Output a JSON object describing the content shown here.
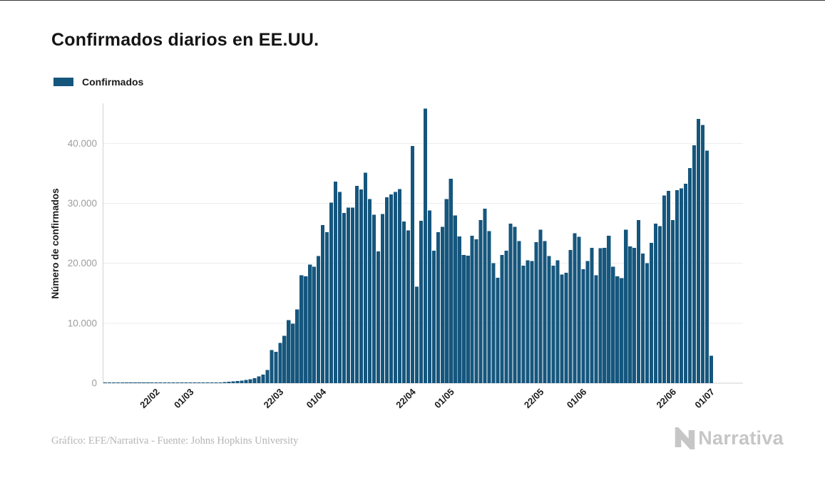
{
  "page": {
    "title": "Confirmados diarios en EE.UU."
  },
  "legend": {
    "label": "Confirmados"
  },
  "footer": {
    "credit": "Gráfico: EFE/Narrativa - Fuente: Johns Hopkins University",
    "brand": "Narrativa"
  },
  "colors": {
    "bar": "#15567D",
    "grid": "#ededed",
    "axis": "#d2d2d2",
    "ytick_label": "#9d9d9d",
    "text": "#1a1a1a",
    "credit_text": "#b4b4b4",
    "logo": "#c6c6c6"
  },
  "chart_data": {
    "type": "bar",
    "title": "Confirmados diarios en EE.UU.",
    "xlabel": "",
    "ylabel": "Número de confirmados",
    "legend": [
      "Confirmados"
    ],
    "legend_position": "top-left",
    "grid": "horizontal",
    "date_range": [
      "10/02/2020",
      "01/07/2020"
    ],
    "ylim": [
      0,
      46700
    ],
    "yticks": [
      0,
      10000,
      20000,
      30000,
      40000
    ],
    "ytick_labels": [
      "0",
      "10.000",
      "20.000",
      "30.000",
      "40.000"
    ],
    "x_slots": 150,
    "xticks": [
      {
        "index": 12,
        "label": "22/02"
      },
      {
        "index": 20,
        "label": "01/03"
      },
      {
        "index": 41,
        "label": "22/03"
      },
      {
        "index": 51,
        "label": "01/04"
      },
      {
        "index": 72,
        "label": "22/04"
      },
      {
        "index": 81,
        "label": "01/05"
      },
      {
        "index": 102,
        "label": "22/05"
      },
      {
        "index": 112,
        "label": "01/06"
      },
      {
        "index": 133,
        "label": "22/06"
      },
      {
        "index": 142,
        "label": "01/07"
      }
    ],
    "values": [
      2,
      1,
      2,
      3,
      3,
      8,
      6,
      10,
      12,
      15,
      18,
      20,
      22,
      25,
      30,
      35,
      40,
      45,
      55,
      68,
      30,
      25,
      35,
      50,
      80,
      110,
      130,
      125,
      180,
      240,
      290,
      350,
      420,
      560,
      680,
      820,
      1100,
      1400,
      2200,
      5500,
      5200,
      6700,
      7900,
      10500,
      9900,
      12300,
      18000,
      17800,
      19800,
      19400,
      21200,
      26400,
      25200,
      30100,
      33600,
      31900,
      28400,
      29300,
      29300,
      32900,
      32300,
      35100,
      30700,
      28100,
      22000,
      28200,
      31000,
      31500,
      31900,
      32400,
      27000,
      25500,
      39600,
      16100,
      27100,
      45800,
      28800,
      22100,
      25200,
      26100,
      30700,
      34100,
      28000,
      24500,
      21400,
      21300,
      24600,
      24000,
      27200,
      29100,
      25400,
      20000,
      17600,
      21400,
      22100,
      26600,
      26100,
      23700,
      19600,
      20500,
      20400,
      23500,
      25600,
      23700,
      21200,
      19600,
      20500,
      18100,
      18400,
      22200,
      25000,
      24400,
      19000,
      20400,
      22600,
      18000,
      22500,
      22600,
      24600,
      19400,
      17800,
      17500,
      25600,
      22800,
      22600,
      27200,
      21600,
      20000,
      23400,
      26600,
      26200,
      31300,
      32100,
      27200,
      32200,
      32500,
      33300,
      35900,
      39700,
      44100,
      43100,
      38800,
      4600
    ]
  }
}
